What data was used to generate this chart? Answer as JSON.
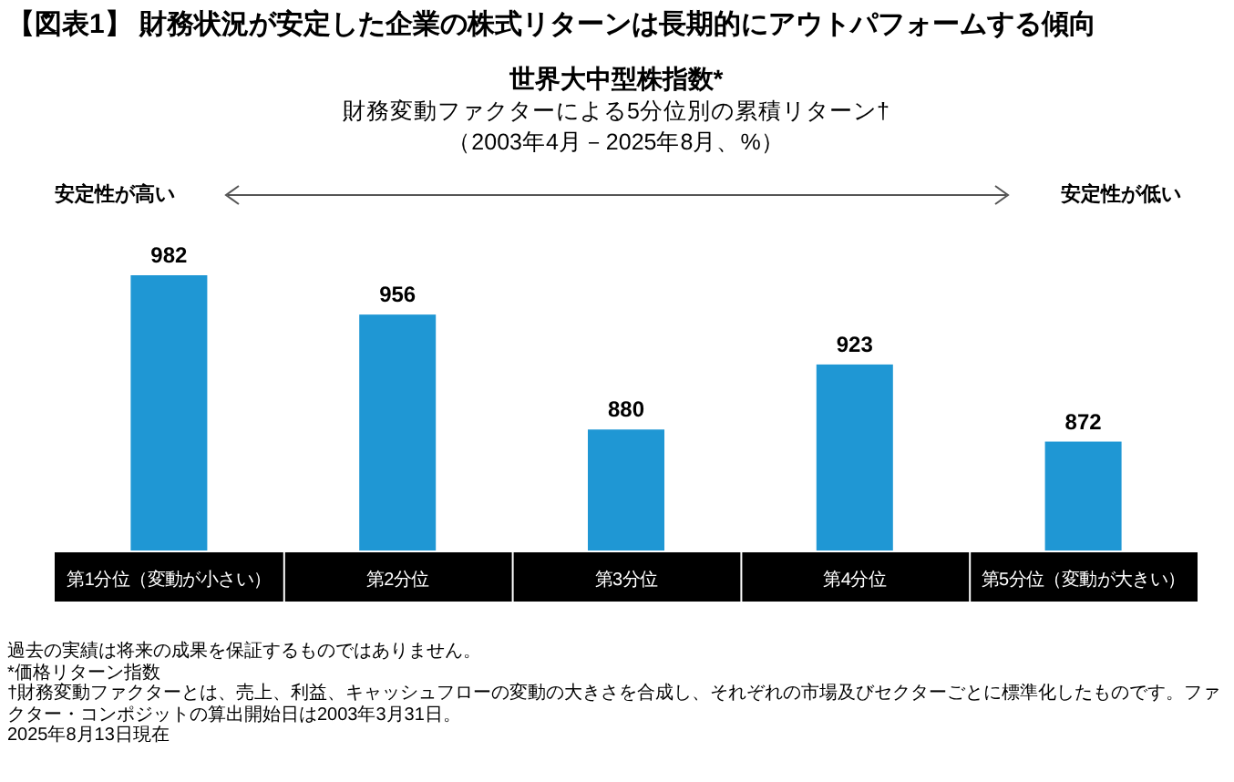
{
  "chart_data": {
    "type": "bar",
    "title": "【図表1】 財務状況が安定した企業の株式リターンは長期的にアウトパフォームする傾向",
    "subtitle": "世界大中型株指数*\n財務変動ファクターによる5分位別の累積リターン†\n（2003年4月－2025年8月、%）",
    "categories": [
      "第1分位（変動が小さい）",
      "第2分位",
      "第3分位",
      "第4分位",
      "第5分位（変動が大きい）"
    ],
    "values": [
      982,
      956,
      880,
      923,
      872
    ],
    "color": "#1f97d4",
    "ylim": [
      800,
      982
    ],
    "data_labels": true,
    "annotations": [
      "安定性が高い",
      "安定性が低い",
      "過去の実績は将来の成果を保証するものではありません。",
      "*価格リターン指数",
      "†財務変動ファクターとは、売上、利益、キャッシュフローの変動の大きさを合成し、それぞれの市場及びセクターごとに標準化したものです。ファクター・コンポジットの算出開始日は2003年3月31日。",
      "2025年8月13日現在"
    ]
  }
}
